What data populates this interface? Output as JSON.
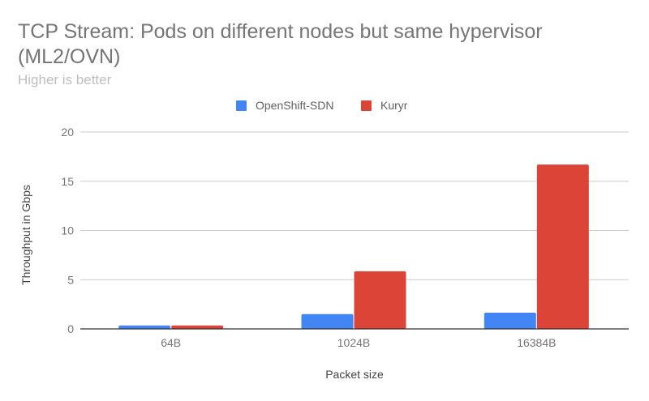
{
  "chart_data": {
    "type": "bar",
    "title_lines": [
      "TCP Stream: Pods on different nodes but same hypervisor",
      "(ML2/OVN)"
    ],
    "subtitle": "Higher is better",
    "categories": [
      "64B",
      "1024B",
      "16384B"
    ],
    "series": [
      {
        "name": "OpenShift-SDN",
        "color": "#4285f4",
        "values": [
          0.35,
          1.5,
          1.65
        ]
      },
      {
        "name": "Kuryr",
        "color": "#db4437",
        "values": [
          0.35,
          5.85,
          16.7
        ]
      }
    ],
    "xlabel": "Packet size",
    "ylabel": "Throughput in Gbps",
    "ylim": [
      0,
      20
    ],
    "yticks": [
      0,
      5,
      10,
      15,
      20
    ],
    "grid": true,
    "legend_position": "top-center"
  }
}
